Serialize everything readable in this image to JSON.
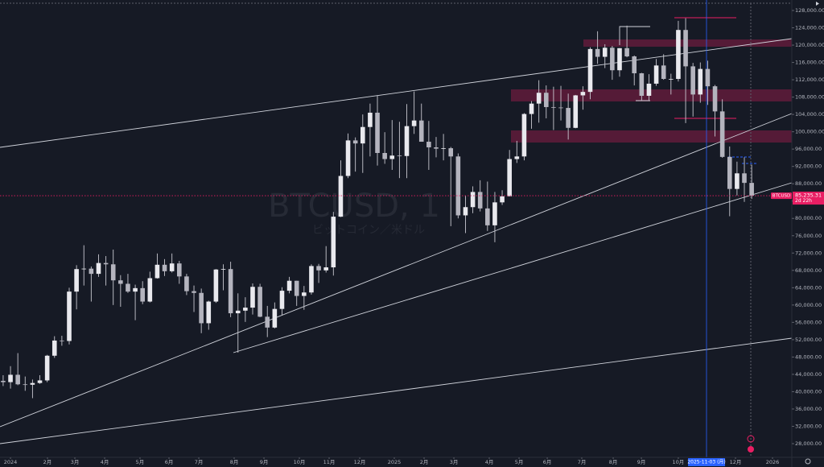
{
  "chart_data": {
    "type": "candlestick",
    "watermark": "BTCUSD, 1",
    "watermark_subtitle": "ビットコイン／米ドル",
    "symbol": "BTCUSD",
    "last_price": {
      "value": 85235.31,
      "label": "85,235.31"
    },
    "countdown": "2d 22h",
    "crosshair_date": {
      "value": 95.85,
      "label": "2025-11-03 (月)"
    },
    "up_color": "#e9e9ee",
    "down_color": "#b4b4be",
    "wick_color": "#c9c9d1",
    "price_line_color": "#e91e63",
    "xlim": [
      -0.43,
      106.81
    ],
    "ylim": [
      24840,
      130416
    ],
    "xticks": [
      {
        "value": 1,
        "label": "2024"
      },
      {
        "value": 6.04,
        "label": "2月"
      },
      {
        "value": 9.77,
        "label": "3月"
      },
      {
        "value": 13.83,
        "label": "4月"
      },
      {
        "value": 18.65,
        "label": "5月"
      },
      {
        "value": 22.6,
        "label": "6月"
      },
      {
        "value": 26.66,
        "label": "7月"
      },
      {
        "value": 31.48,
        "label": "8月"
      },
      {
        "value": 35.54,
        "label": "9月"
      },
      {
        "value": 40.36,
        "label": "10月"
      },
      {
        "value": 44.42,
        "label": "11月"
      },
      {
        "value": 48.59,
        "label": "12月"
      },
      {
        "value": 53.3,
        "label": "2025"
      },
      {
        "value": 57.36,
        "label": "2月"
      },
      {
        "value": 61.42,
        "label": "3月"
      },
      {
        "value": 66.24,
        "label": "4月"
      },
      {
        "value": 70.3,
        "label": "5月"
      },
      {
        "value": 74.14,
        "label": "6月"
      },
      {
        "value": 78.85,
        "label": "7月"
      },
      {
        "value": 83.13,
        "label": "8月"
      },
      {
        "value": 86.97,
        "label": "9月"
      },
      {
        "value": 92.0,
        "label": "10月"
      },
      {
        "value": 99.79,
        "label": "12月"
      },
      {
        "value": 104.84,
        "label": "2026"
      }
    ],
    "yticks": [
      {
        "value": 128000,
        "label": "128,000.00"
      },
      {
        "value": 124000,
        "label": "124,000.00"
      },
      {
        "value": 120000,
        "label": "120,000.00"
      },
      {
        "value": 116000,
        "label": "116,000.00"
      },
      {
        "value": 112000,
        "label": "112,000.00"
      },
      {
        "value": 108000,
        "label": "108,000.00"
      },
      {
        "value": 104000,
        "label": "104,000.00"
      },
      {
        "value": 100000,
        "label": "100,000.00"
      },
      {
        "value": 96000,
        "label": "96,000.00"
      },
      {
        "value": 92000,
        "label": "92,000.00"
      },
      {
        "value": 88000,
        "label": "88,000.00"
      },
      {
        "value": 84000,
        "label": "84,000.00"
      },
      {
        "value": 80000,
        "label": "80,000.00"
      },
      {
        "value": 76000,
        "label": "76,000.00"
      },
      {
        "value": 72000,
        "label": "72,000.00"
      },
      {
        "value": 68000,
        "label": "68,000.00"
      },
      {
        "value": 64000,
        "label": "64,000.00"
      },
      {
        "value": 60000,
        "label": "60,000.00"
      },
      {
        "value": 56000,
        "label": "56,000.00"
      },
      {
        "value": 52000,
        "label": "52,000.00"
      },
      {
        "value": 48000,
        "label": "48,000.00"
      },
      {
        "value": 44000,
        "label": "44,000.00"
      },
      {
        "value": 40000,
        "label": "40,000.00"
      },
      {
        "value": 36000,
        "label": "36,000.00"
      },
      {
        "value": 32000,
        "label": "32,000.00"
      },
      {
        "value": 28000,
        "label": "28,000.00"
      }
    ],
    "candles": [
      [
        42500,
        43800,
        41300,
        42200
      ],
      [
        42200,
        45900,
        40700,
        43900
      ],
      [
        43900,
        48900,
        41500,
        41700
      ],
      [
        41700,
        43500,
        40200,
        41600
      ],
      [
        41600,
        42800,
        38500,
        42000
      ],
      [
        42000,
        43800,
        41800,
        42600
      ],
      [
        42600,
        48500,
        42200,
        48300
      ],
      [
        48300,
        52800,
        47800,
        51800
      ],
      [
        51800,
        52900,
        50600,
        51700
      ],
      [
        51700,
        64000,
        50900,
        63100
      ],
      [
        63100,
        69200,
        59000,
        68300
      ],
      [
        68300,
        73800,
        64500,
        68400
      ],
      [
        68400,
        68900,
        60800,
        67200
      ],
      [
        67200,
        71700,
        66500,
        69700
      ],
      [
        69700,
        71300,
        64500,
        69400
      ],
      [
        69400,
        72800,
        60000,
        65700
      ],
      [
        65700,
        66900,
        59600,
        64900
      ],
      [
        64900,
        67200,
        62800,
        63100
      ],
      [
        63100,
        64700,
        56500,
        63900
      ],
      [
        63900,
        65500,
        60200,
        60800
      ],
      [
        60800,
        67700,
        60600,
        66200
      ],
      [
        66200,
        71900,
        66100,
        69300
      ],
      [
        69300,
        70600,
        66700,
        67800
      ],
      [
        67800,
        71900,
        67500,
        69600
      ],
      [
        69600,
        70200,
        64900,
        66600
      ],
      [
        66600,
        67200,
        62300,
        63200
      ],
      [
        63200,
        64500,
        58400,
        62800
      ],
      [
        62800,
        63800,
        53500,
        55800
      ],
      [
        55800,
        61000,
        54300,
        60800
      ],
      [
        60800,
        68300,
        60500,
        68200
      ],
      [
        68200,
        69400,
        63400,
        68300
      ],
      [
        68300,
        70000,
        57200,
        58100
      ],
      [
        58100,
        62700,
        49000,
        58700
      ],
      [
        58700,
        61800,
        56100,
        59400
      ],
      [
        59400,
        65000,
        57800,
        64200
      ],
      [
        64200,
        64900,
        57200,
        57300
      ],
      [
        57300,
        59800,
        52600,
        54800
      ],
      [
        54800,
        60600,
        54600,
        59100
      ],
      [
        59100,
        64100,
        57600,
        63300
      ],
      [
        63300,
        66500,
        62700,
        65600
      ],
      [
        65600,
        65600,
        59800,
        62100
      ],
      [
        62100,
        64400,
        58900,
        62900
      ],
      [
        62900,
        69400,
        62400,
        69000
      ],
      [
        69000,
        69500,
        65100,
        68000
      ],
      [
        68000,
        73600,
        67500,
        68700
      ],
      [
        68700,
        81500,
        66800,
        80400
      ],
      [
        80400,
        93400,
        80300,
        89800
      ],
      [
        89800,
        99600,
        89300,
        98000
      ],
      [
        98000,
        98700,
        90800,
        97300
      ],
      [
        97300,
        104000,
        90500,
        101100
      ],
      [
        101100,
        106500,
        94300,
        104400
      ],
      [
        104400,
        108300,
        92200,
        95100
      ],
      [
        95100,
        99900,
        92600,
        93700
      ],
      [
        93700,
        102700,
        91200,
        94500
      ],
      [
        94500,
        102300,
        89300,
        94400
      ],
      [
        94400,
        106400,
        89300,
        101300
      ],
      [
        101300,
        109300,
        99500,
        102600
      ],
      [
        102600,
        106500,
        97700,
        97700
      ],
      [
        97700,
        102500,
        91200,
        96400
      ],
      [
        96400,
        98800,
        94100,
        96100
      ],
      [
        96100,
        99500,
        93400,
        96200
      ],
      [
        96200,
        96500,
        78200,
        94300
      ],
      [
        94300,
        95000,
        80000,
        80700
      ],
      [
        80700,
        85300,
        76600,
        82600
      ],
      [
        82600,
        87400,
        81200,
        86100
      ],
      [
        86100,
        88800,
        81600,
        82300
      ],
      [
        82300,
        88500,
        77100,
        78400
      ],
      [
        78400,
        86100,
        74500,
        83700
      ],
      [
        83700,
        86500,
        83100,
        85100
      ],
      [
        85100,
        95800,
        85100,
        93700
      ],
      [
        93700,
        97900,
        92800,
        94300
      ],
      [
        94300,
        104300,
        93400,
        104100
      ],
      [
        104100,
        107100,
        100700,
        106500
      ],
      [
        106500,
        111900,
        102100,
        109000
      ],
      [
        109000,
        110700,
        103100,
        105700
      ],
      [
        105700,
        110400,
        100400,
        105600
      ],
      [
        105600,
        110600,
        102600,
        105500
      ],
      [
        105500,
        108800,
        98200,
        100900
      ],
      [
        100900,
        108500,
        100800,
        108400
      ],
      [
        108400,
        110500,
        105100,
        109200
      ],
      [
        109200,
        119500,
        107500,
        119100
      ],
      [
        119100,
        123200,
        115700,
        117300
      ],
      [
        117300,
        120200,
        114700,
        119400
      ],
      [
        119400,
        119800,
        112000,
        114200
      ],
      [
        114200,
        119300,
        112700,
        119300
      ],
      [
        119300,
        124500,
        117200,
        117400
      ],
      [
        117400,
        117600,
        110700,
        113500
      ],
      [
        113500,
        113600,
        107300,
        108300
      ],
      [
        108300,
        113300,
        107300,
        111100
      ],
      [
        111100,
        116800,
        110600,
        115300
      ],
      [
        115300,
        117900,
        112000,
        112200
      ],
      [
        112200,
        113400,
        108600,
        112200
      ],
      [
        112200,
        125600,
        111600,
        123500
      ],
      [
        123500,
        126200,
        102000,
        115100
      ],
      [
        115100,
        115900,
        103500,
        108600
      ],
      [
        108600,
        116000,
        106700,
        114500
      ],
      [
        114500,
        116400,
        106200,
        110500
      ],
      [
        110500,
        110800,
        98900,
        104700
      ],
      [
        104700,
        107500,
        94000,
        94200
      ],
      [
        94200,
        96600,
        80500,
        86800
      ],
      [
        86800,
        93100,
        85300,
        90400
      ],
      [
        90400,
        94100,
        83800,
        88200
      ],
      [
        88200,
        92400,
        84500,
        85235.31
      ]
    ]
  }
}
